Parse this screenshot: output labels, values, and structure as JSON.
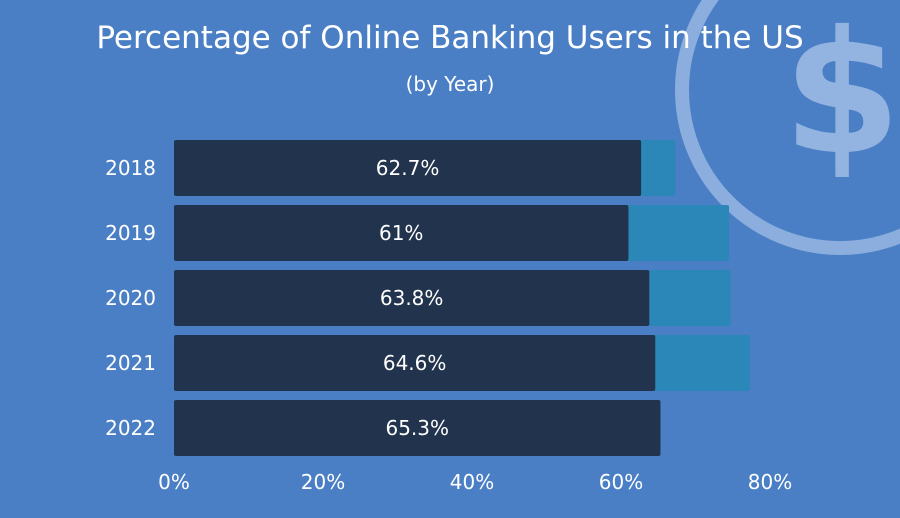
{
  "colors": {
    "background": "#4a7fc6",
    "bar_primary": "#22344d",
    "bar_secondary": "#2b87b8",
    "text_light": "#ffffff",
    "decoration": "#93b4e0"
  },
  "decoration": {
    "icon": "dollar-coin-icon",
    "glyph": "$"
  },
  "chart_data": {
    "type": "bar",
    "orientation": "horizontal",
    "title": "Percentage of Online Banking Users in the US",
    "subtitle": "(by Year)",
    "categories": [
      "2018",
      "2019",
      "2020",
      "2021",
      "2022"
    ],
    "series": [
      {
        "values": [
          62.7,
          61,
          63.8,
          64.6,
          65.3
        ]
      },
      {
        "values": [
          67.3,
          74.5,
          74.7,
          77.3,
          65.3
        ]
      }
    ],
    "data_labels": [
      "62.7%",
      "61%",
      "63.8%",
      "64.6%",
      "65.3%"
    ],
    "xlim": [
      0,
      80
    ],
    "x_ticks": [
      0,
      20,
      40,
      60,
      80
    ],
    "x_tick_labels": [
      "0%",
      "20%",
      "40%",
      "60%",
      "80%"
    ],
    "grid": false,
    "legend": "none"
  }
}
